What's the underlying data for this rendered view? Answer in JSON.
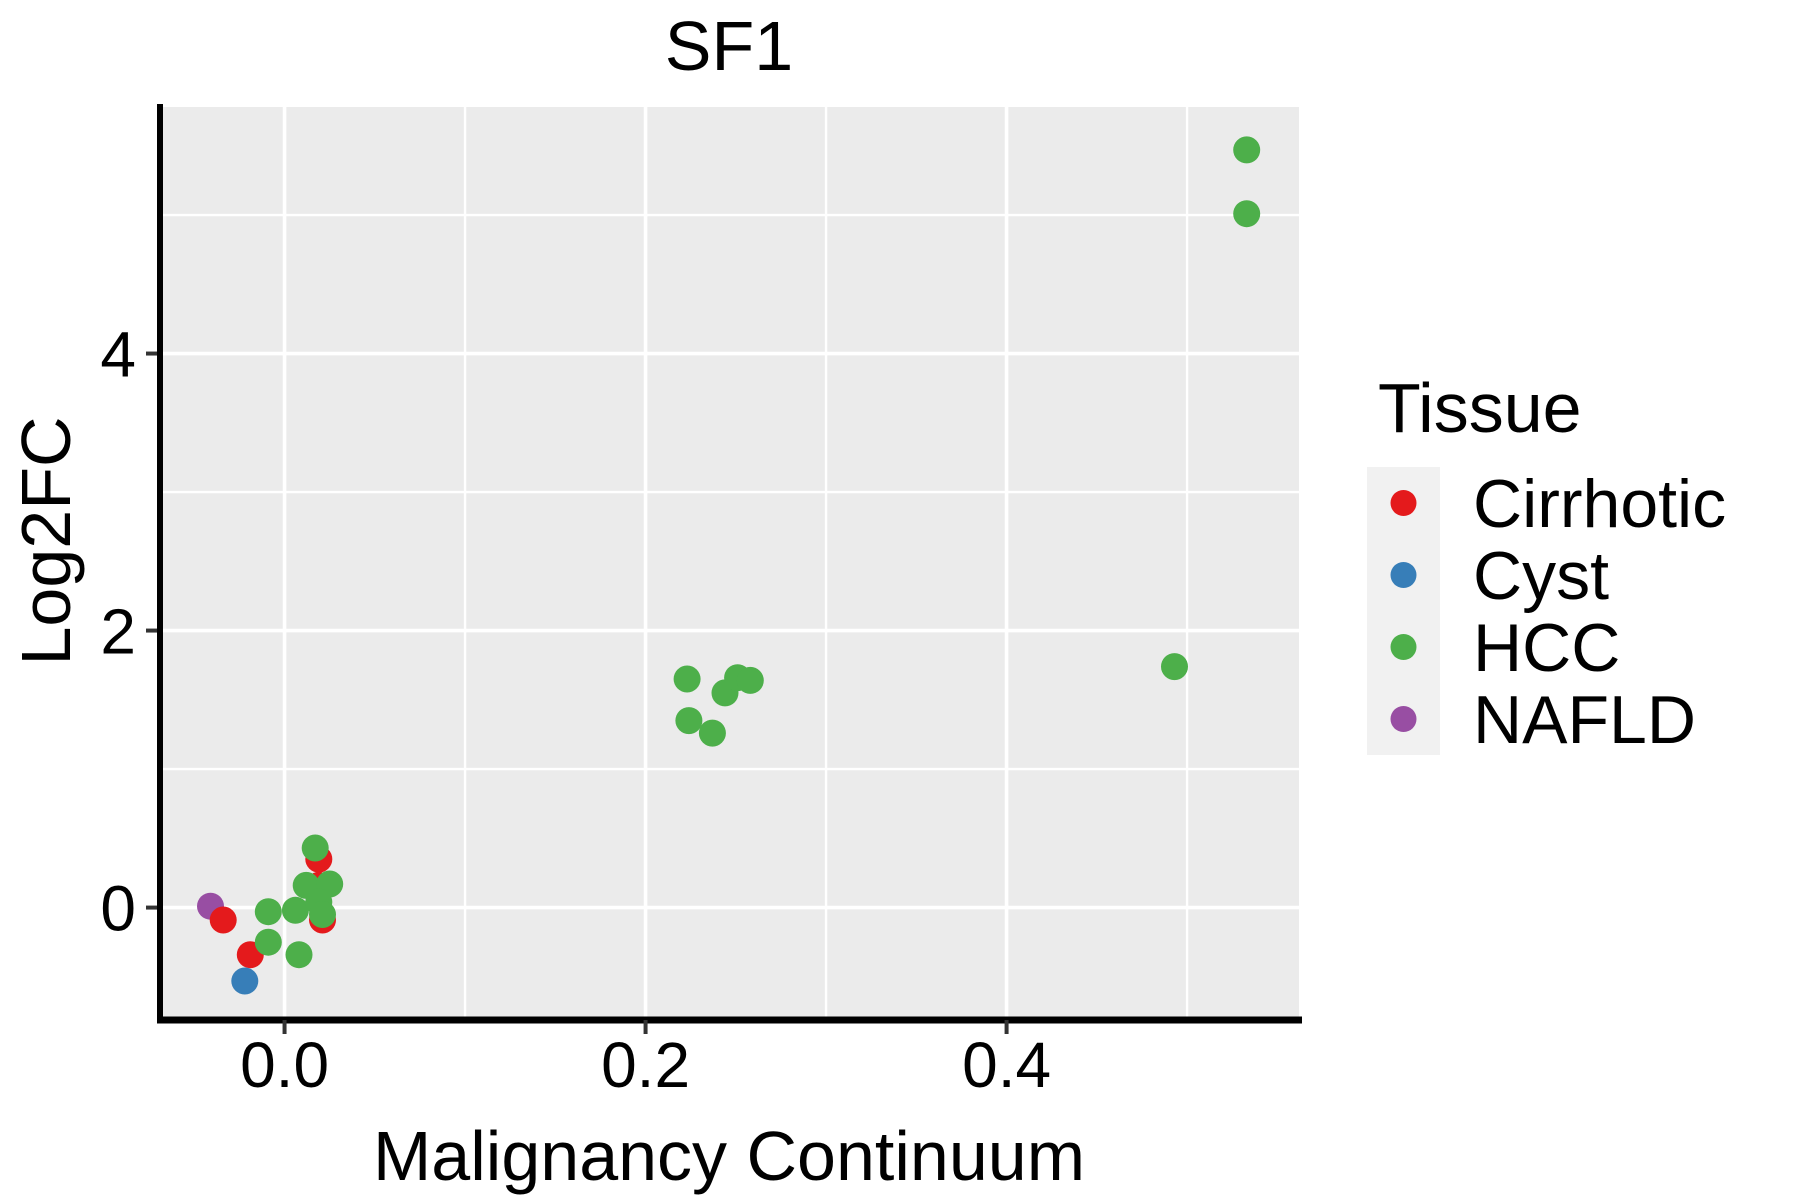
{
  "page": {
    "background": "#FFFFFF"
  },
  "chart_data": {
    "type": "scatter",
    "title": "SF1",
    "xlabel": "Malignancy Continuum",
    "ylabel": "Log2FC",
    "xlim": [
      -0.069,
      0.562
    ],
    "ylim": [
      -0.79,
      5.78
    ],
    "x_ticks": {
      "values": [
        0.0,
        0.2,
        0.4
      ],
      "labels": [
        "0.0",
        "0.2",
        "0.4"
      ],
      "minor": [
        0.1,
        0.3,
        0.5
      ]
    },
    "y_ticks": {
      "values": [
        0,
        2,
        4
      ],
      "labels": [
        "0",
        "2",
        "4"
      ],
      "minor": [
        1,
        3,
        5
      ]
    },
    "grid": true,
    "panel_bg": "#EBEBEB",
    "grid_color": "#FFFFFF",
    "legend_key_bg": "#F1F1F1",
    "axis_line_color": "#000000",
    "tick_mark_color": "#333333",
    "point_radius": 13.5,
    "legend": {
      "title": "Tissue",
      "position": "right",
      "entries": [
        {
          "label": "Cirrhotic",
          "color": "#E41A1C"
        },
        {
          "label": "Cyst",
          "color": "#377EB8"
        },
        {
          "label": "HCC",
          "color": "#4DAF4A"
        },
        {
          "label": "NAFLD",
          "color": "#984EA3"
        }
      ]
    },
    "series": [
      {
        "name": "Cirrhotic",
        "color": "#E41A1C",
        "points": [
          [
            -0.034,
            -0.09
          ],
          [
            -0.019,
            -0.34
          ],
          [
            0.019,
            0.35
          ],
          [
            0.019,
            0.16
          ],
          [
            0.021,
            -0.09
          ]
        ]
      },
      {
        "name": "Cyst",
        "color": "#377EB8",
        "points": [
          [
            -0.022,
            -0.53
          ]
        ]
      },
      {
        "name": "HCC",
        "color": "#4DAF4A",
        "points": [
          [
            -0.009,
            -0.25
          ],
          [
            -0.009,
            -0.03
          ],
          [
            0.006,
            -0.02
          ],
          [
            0.008,
            -0.34
          ],
          [
            0.017,
            0.43
          ],
          [
            0.012,
            0.16
          ],
          [
            0.025,
            0.17
          ],
          [
            0.019,
            0.04
          ],
          [
            0.021,
            -0.05
          ],
          [
            0.223,
            1.65
          ],
          [
            0.224,
            1.35
          ],
          [
            0.237,
            1.26
          ],
          [
            0.244,
            1.55
          ],
          [
            0.251,
            1.66
          ],
          [
            0.258,
            1.64
          ],
          [
            0.493,
            1.74
          ],
          [
            0.533,
            5.47
          ],
          [
            0.533,
            5.01
          ]
        ]
      },
      {
        "name": "NAFLD",
        "color": "#984EA3",
        "points": [
          [
            -0.041,
            0.01
          ]
        ]
      }
    ],
    "z_order": [
      "NAFLD",
      "Cirrhotic",
      "Cyst",
      "HCC"
    ]
  }
}
